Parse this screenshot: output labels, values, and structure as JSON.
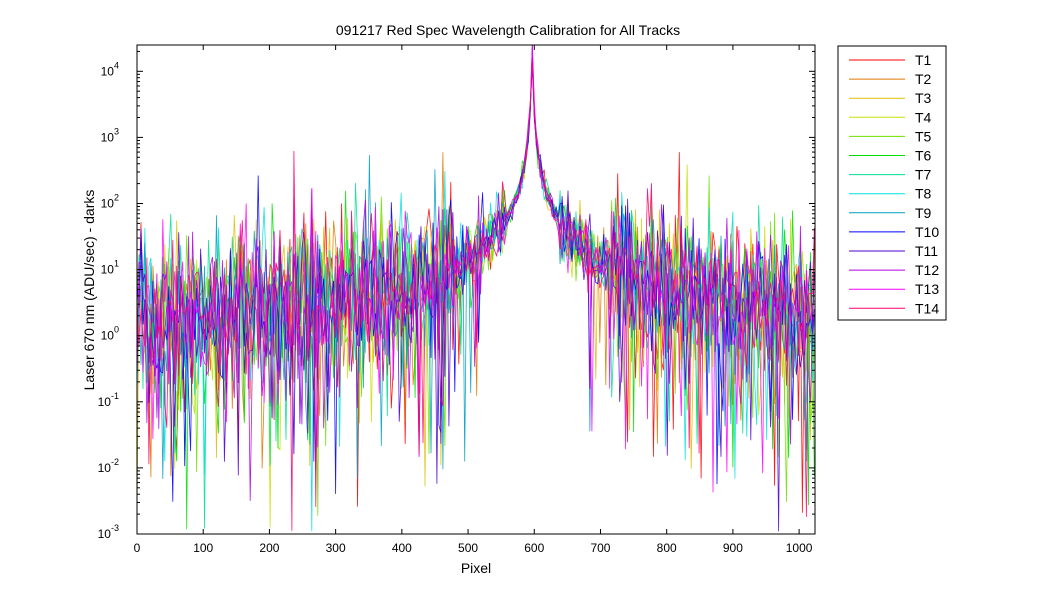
{
  "chart_data": {
    "type": "line",
    "title": "091217 Red Spec Wavelength Calibration for All Tracks",
    "xlabel": "Pixel",
    "ylabel": "Laser 670 nm (ADU/sec) - darks",
    "xlim": [
      0,
      1024
    ],
    "ylim": [
      0.001,
      25000
    ],
    "yscale": "log",
    "grid": false,
    "legend_position": "outside-top-right",
    "xticks": [
      0,
      100,
      200,
      300,
      400,
      500,
      600,
      700,
      800,
      900,
      1000
    ],
    "xtick_labels": [
      "0",
      "100",
      "200",
      "300",
      "400",
      "500",
      "600",
      "700",
      "800",
      "900",
      "1000"
    ],
    "yticks": [
      0.001,
      0.01,
      0.1,
      1,
      10,
      100,
      1000,
      10000
    ],
    "ytick_bases": [
      "10",
      "10",
      "10",
      "10",
      "10",
      "10",
      "10",
      "10"
    ],
    "ytick_exponents": [
      "-3",
      "-2",
      "-1",
      "0",
      "1",
      "2",
      "3",
      "4"
    ],
    "peak": {
      "x": 597,
      "y": 20000
    },
    "features": [
      {
        "x": 5,
        "y": 10
      },
      {
        "x": 155,
        "y": 5
      },
      {
        "x": 180,
        "y": 9
      },
      {
        "x": 215,
        "y": 2.5
      },
      {
        "x": 253,
        "y": 13
      }
    ],
    "noise_floor": 1,
    "x_step": 3,
    "series": [
      {
        "name": "T1",
        "color": "#ff0000"
      },
      {
        "name": "T2",
        "color": "#e07800"
      },
      {
        "name": "T3",
        "color": "#e0c000"
      },
      {
        "name": "T4",
        "color": "#c8e000"
      },
      {
        "name": "T5",
        "color": "#6ee000"
      },
      {
        "name": "T6",
        "color": "#00e000"
      },
      {
        "name": "T7",
        "color": "#00e090"
      },
      {
        "name": "T8",
        "color": "#00e0e0"
      },
      {
        "name": "T9",
        "color": "#00a0c0"
      },
      {
        "name": "T10",
        "color": "#0000ff"
      },
      {
        "name": "T11",
        "color": "#5000d0"
      },
      {
        "name": "T12",
        "color": "#b000e0"
      },
      {
        "name": "T13",
        "color": "#ff00ff"
      },
      {
        "name": "T14",
        "color": "#ff0070"
      }
    ]
  }
}
